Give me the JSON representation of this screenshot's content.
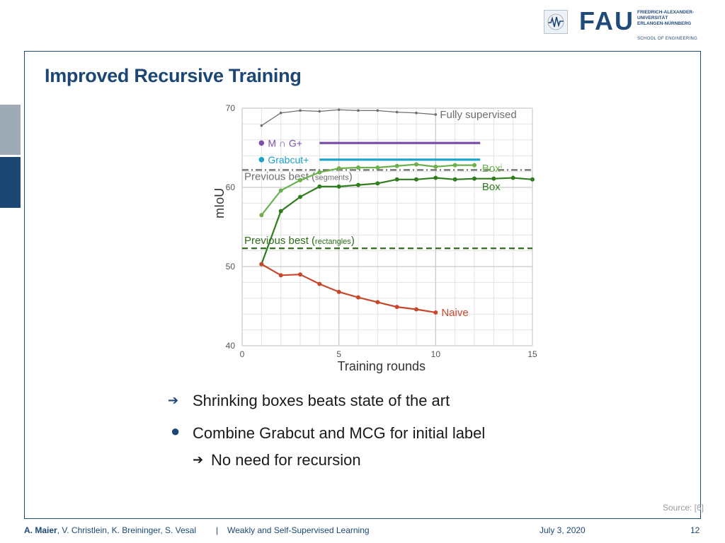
{
  "header": {
    "logo_letters": "FAU",
    "university_lines": [
      "FRIEDRICH-ALEXANDER-",
      "UNIVERSITÄT",
      "ERLANGEN-NÜRNBERG"
    ],
    "school": "SCHOOL OF ENGINEERING"
  },
  "slide": {
    "title": "Improved Recursive Training"
  },
  "bullets": [
    {
      "icon": "arrow-right-icon",
      "text": "Shrinking boxes beats state of the art"
    },
    {
      "icon": "bullet-dot-icon",
      "text": "Combine Grabcut and MCG for initial label"
    },
    {
      "icon": "arrow-right-icon",
      "text": "No need for recursion"
    }
  ],
  "source": "Source: [6]",
  "footer": {
    "author_bold": "A. Maier",
    "authors_rest": ", V. Christlein, K. Breininger, S. Vesal",
    "separator": "|",
    "course": "Weakly and Self-Supervised Learning",
    "date": "July 3, 2020",
    "page": "12"
  },
  "chart_data": {
    "type": "line",
    "xlabel": "Training rounds",
    "ylabel": "mIoU",
    "xlim": [
      0,
      15
    ],
    "ylim": [
      40,
      70
    ],
    "xticks": [
      0,
      5,
      10,
      15
    ],
    "yticks": [
      40,
      50,
      60,
      70
    ],
    "grid": true,
    "series": [
      {
        "name": "Fully supervised",
        "color": "#6e6e6e",
        "x": [
          1,
          2,
          3,
          4,
          5,
          6,
          7,
          8,
          9,
          10
        ],
        "y": [
          67.8,
          69.4,
          69.7,
          69.6,
          69.8,
          69.7,
          69.7,
          69.5,
          69.4,
          69.2
        ]
      },
      {
        "name": "Boxⁱ",
        "color": "#6ab04c",
        "x": [
          1,
          2,
          3,
          4,
          5,
          6,
          7,
          8,
          9,
          10,
          11,
          12
        ],
        "y": [
          56.5,
          59.6,
          60.9,
          61.9,
          62.4,
          62.5,
          62.5,
          62.7,
          62.9,
          62.6,
          62.8,
          62.8
        ]
      },
      {
        "name": "Box",
        "color": "#2f7d1f",
        "x": [
          1,
          2,
          3,
          4,
          5,
          6,
          7,
          8,
          9,
          10,
          11,
          12,
          13,
          14,
          15
        ],
        "y": [
          50.3,
          57.0,
          58.8,
          60.1,
          60.1,
          60.3,
          60.5,
          61.0,
          61.0,
          61.2,
          61.0,
          61.1,
          61.1,
          61.2,
          61.0
        ]
      },
      {
        "name": "Naive",
        "color": "#c8472b",
        "x": [
          1,
          2,
          3,
          4,
          5,
          6,
          7,
          8,
          9,
          10
        ],
        "y": [
          50.3,
          48.9,
          49.0,
          47.8,
          46.8,
          46.1,
          45.5,
          44.9,
          44.6,
          44.2
        ]
      }
    ],
    "reference_lines": [
      {
        "label": "M ∩ G+",
        "value": 65.6,
        "color": "#7c4fad",
        "x_from": 4,
        "x_to": 12.3
      },
      {
        "label": "Grabcut+",
        "value": 63.5,
        "color": "#1aa3c8",
        "x_from": 4,
        "x_to": 12.3
      },
      {
        "label_main": "Previous best (",
        "label_small": "segments",
        "label_end": ")",
        "value": 62.2,
        "color": "#6e6e6e",
        "style": "dashdot"
      },
      {
        "label_main": "Previous best (",
        "label_small": "rectangles",
        "label_end": ")",
        "value": 52.3,
        "color": "#2f6b1a",
        "style": "dashed"
      }
    ]
  }
}
